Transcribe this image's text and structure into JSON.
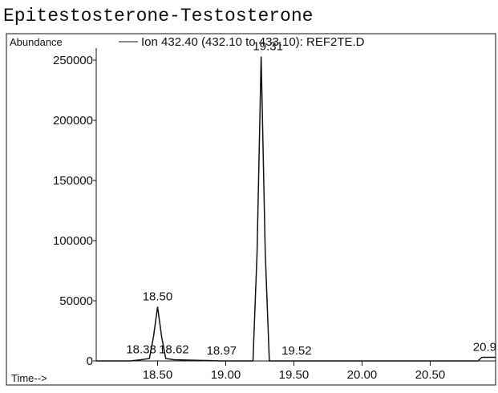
{
  "chart_data": {
    "type": "line",
    "title": "Epitestosterone-Testosterone",
    "y_label": "Abundance",
    "x_label": "Time-->",
    "series": [
      {
        "name": "Ion 432.40 (432.10 to 433.10): REF2TE.D",
        "color": "#111111",
        "x": [
          18.05,
          18.3,
          18.38,
          18.44,
          18.47,
          18.5,
          18.53,
          18.56,
          18.62,
          18.97,
          19.2,
          19.23,
          19.26,
          19.29,
          19.32,
          19.52,
          20.85,
          20.88,
          20.92,
          20.98
        ],
        "values": [
          0,
          0,
          1000,
          2000,
          20000,
          45000,
          20000,
          2000,
          1000,
          0,
          0,
          90000,
          253000,
          90000,
          0,
          0,
          0,
          3000,
          3000,
          3000
        ]
      }
    ],
    "peak_labels": [
      {
        "value": 18.5,
        "label": "18.50",
        "y": 45000
      },
      {
        "value": 19.31,
        "label": "19.31",
        "y": 253000
      },
      {
        "value": 18.38,
        "label": "18.38",
        "y": 1000
      },
      {
        "value": 18.62,
        "label": "18.62",
        "y": 1000
      },
      {
        "value": 18.97,
        "label": "18.97",
        "y": 0
      },
      {
        "value": 19.52,
        "label": "19.52",
        "y": 0
      },
      {
        "value": 20.9,
        "label": "20.9",
        "y": 3000
      }
    ],
    "xlim": [
      18.05,
      20.98
    ],
    "ylim": [
      0,
      260000
    ],
    "xticks": [
      {
        "value": 18.5,
        "label": "18.50"
      },
      {
        "value": 19.0,
        "label": "19.00"
      },
      {
        "value": 19.5,
        "label": "19.50"
      },
      {
        "value": 20.0,
        "label": "20.00"
      },
      {
        "value": 20.5,
        "label": "20.50"
      }
    ],
    "yticks": [
      0,
      50000,
      100000,
      150000,
      200000,
      250000
    ]
  }
}
